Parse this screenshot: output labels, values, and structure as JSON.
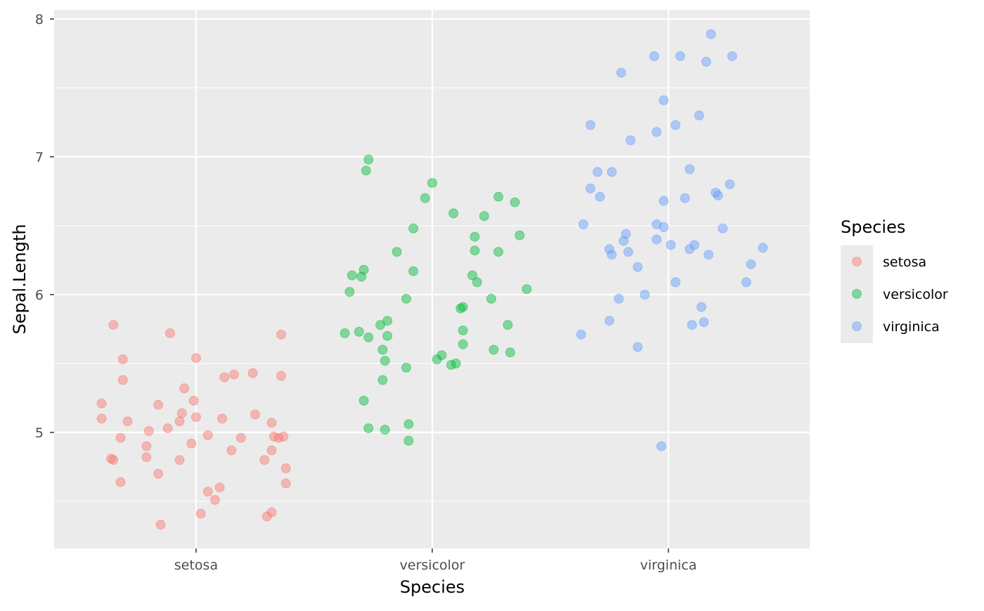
{
  "chart_data": {
    "type": "scatter",
    "xlabel": "Species",
    "ylabel": "Sepal.Length",
    "categories": [
      "setosa",
      "versicolor",
      "virginica"
    ],
    "ylim": [
      4.2,
      8.08
    ],
    "xlim": [
      0.4,
      3.6
    ],
    "yticks": [
      "5",
      "6",
      "7",
      "8"
    ],
    "grid": true,
    "legend": {
      "title": "Species",
      "placement": "right",
      "entries": [
        "setosa",
        "versicolor",
        "virginica"
      ]
    },
    "colors": {
      "setosa": "#F8766D",
      "versicolor": "#00BA38",
      "virginica": "#619CFF",
      "panel": "#EBEBEB"
    },
    "series": [
      {
        "name": "setosa",
        "points": [
          [
            0.65,
            5.78
          ],
          [
            0.89,
            5.72
          ],
          [
            1.36,
            5.71
          ],
          [
            0.69,
            5.53
          ],
          [
            1.0,
            5.54
          ],
          [
            0.69,
            5.38
          ],
          [
            0.95,
            5.32
          ],
          [
            0.6,
            5.21
          ],
          [
            0.99,
            5.23
          ],
          [
            0.84,
            5.2
          ],
          [
            0.94,
            5.14
          ],
          [
            0.6,
            5.1
          ],
          [
            0.71,
            5.08
          ],
          [
            1.0,
            5.11
          ],
          [
            1.11,
            5.1
          ],
          [
            0.93,
            5.08
          ],
          [
            1.32,
            5.07
          ],
          [
            1.25,
            5.13
          ],
          [
            0.8,
            5.01
          ],
          [
            0.88,
            5.03
          ],
          [
            1.05,
            4.98
          ],
          [
            0.68,
            4.96
          ],
          [
            1.19,
            4.96
          ],
          [
            1.33,
            4.97
          ],
          [
            1.37,
            4.97
          ],
          [
            1.35,
            4.96
          ],
          [
            0.98,
            4.92
          ],
          [
            0.79,
            4.9
          ],
          [
            1.15,
            4.87
          ],
          [
            1.32,
            4.87
          ],
          [
            0.64,
            4.81
          ],
          [
            0.65,
            4.8
          ],
          [
            0.79,
            4.82
          ],
          [
            0.93,
            4.8
          ],
          [
            1.29,
            4.8
          ],
          [
            1.38,
            4.74
          ],
          [
            0.84,
            4.7
          ],
          [
            0.68,
            4.64
          ],
          [
            1.1,
            4.6
          ],
          [
            1.05,
            4.57
          ],
          [
            1.38,
            4.63
          ],
          [
            1.08,
            4.51
          ],
          [
            1.02,
            4.41
          ],
          [
            1.32,
            4.42
          ],
          [
            1.3,
            4.39
          ],
          [
            0.85,
            4.33
          ],
          [
            1.12,
            5.4
          ],
          [
            1.16,
            5.42
          ],
          [
            1.24,
            5.43
          ],
          [
            1.36,
            5.41
          ]
        ]
      },
      {
        "name": "versicolor",
        "points": [
          [
            1.73,
            6.98
          ],
          [
            1.72,
            6.9
          ],
          [
            2.0,
            6.81
          ],
          [
            1.97,
            6.7
          ],
          [
            2.09,
            6.59
          ],
          [
            2.22,
            6.57
          ],
          [
            2.28,
            6.71
          ],
          [
            2.35,
            6.67
          ],
          [
            1.92,
            6.48
          ],
          [
            2.37,
            6.43
          ],
          [
            2.18,
            6.42
          ],
          [
            1.85,
            6.31
          ],
          [
            2.18,
            6.32
          ],
          [
            2.28,
            6.31
          ],
          [
            1.66,
            6.14
          ],
          [
            1.7,
            6.13
          ],
          [
            1.71,
            6.18
          ],
          [
            1.92,
            6.17
          ],
          [
            2.17,
            6.14
          ],
          [
            2.19,
            6.09
          ],
          [
            1.65,
            6.02
          ],
          [
            2.4,
            6.04
          ],
          [
            1.89,
            5.97
          ],
          [
            2.25,
            5.97
          ],
          [
            2.12,
            5.9
          ],
          [
            2.13,
            5.91
          ],
          [
            1.63,
            5.72
          ],
          [
            1.69,
            5.73
          ],
          [
            1.81,
            5.81
          ],
          [
            1.78,
            5.78
          ],
          [
            2.32,
            5.78
          ],
          [
            2.13,
            5.74
          ],
          [
            1.73,
            5.69
          ],
          [
            1.81,
            5.7
          ],
          [
            2.13,
            5.64
          ],
          [
            1.79,
            5.6
          ],
          [
            2.26,
            5.6
          ],
          [
            2.33,
            5.58
          ],
          [
            2.04,
            5.56
          ],
          [
            2.02,
            5.53
          ],
          [
            1.8,
            5.52
          ],
          [
            2.1,
            5.5
          ],
          [
            2.08,
            5.49
          ],
          [
            1.89,
            5.47
          ],
          [
            1.79,
            5.38
          ],
          [
            1.71,
            5.23
          ],
          [
            1.73,
            5.03
          ],
          [
            1.8,
            5.02
          ],
          [
            1.9,
            5.06
          ],
          [
            1.9,
            4.94
          ]
        ]
      },
      {
        "name": "virginica",
        "points": [
          [
            3.18,
            7.89
          ],
          [
            3.27,
            7.73
          ],
          [
            2.94,
            7.73
          ],
          [
            3.05,
            7.73
          ],
          [
            3.16,
            7.69
          ],
          [
            2.8,
            7.61
          ],
          [
            2.98,
            7.41
          ],
          [
            3.13,
            7.3
          ],
          [
            2.67,
            7.23
          ],
          [
            3.03,
            7.23
          ],
          [
            2.95,
            7.18
          ],
          [
            2.84,
            7.12
          ],
          [
            2.7,
            6.89
          ],
          [
            2.76,
            6.89
          ],
          [
            3.09,
            6.91
          ],
          [
            2.67,
            6.77
          ],
          [
            2.71,
            6.71
          ],
          [
            3.26,
            6.8
          ],
          [
            3.2,
            6.74
          ],
          [
            3.21,
            6.72
          ],
          [
            3.07,
            6.7
          ],
          [
            2.98,
            6.68
          ],
          [
            2.64,
            6.51
          ],
          [
            2.95,
            6.51
          ],
          [
            2.98,
            6.49
          ],
          [
            3.23,
            6.48
          ],
          [
            2.82,
            6.44
          ],
          [
            2.81,
            6.39
          ],
          [
            2.95,
            6.4
          ],
          [
            3.01,
            6.36
          ],
          [
            3.11,
            6.36
          ],
          [
            2.75,
            6.33
          ],
          [
            3.09,
            6.33
          ],
          [
            2.76,
            6.29
          ],
          [
            2.83,
            6.31
          ],
          [
            3.17,
            6.29
          ],
          [
            3.4,
            6.34
          ],
          [
            3.35,
            6.22
          ],
          [
            2.87,
            6.2
          ],
          [
            3.03,
            6.09
          ],
          [
            3.33,
            6.09
          ],
          [
            2.9,
            6.0
          ],
          [
            2.79,
            5.97
          ],
          [
            3.14,
            5.91
          ],
          [
            2.75,
            5.81
          ],
          [
            3.15,
            5.8
          ],
          [
            3.1,
            5.78
          ],
          [
            2.63,
            5.71
          ],
          [
            2.87,
            5.62
          ],
          [
            2.97,
            4.9
          ]
        ]
      }
    ]
  }
}
